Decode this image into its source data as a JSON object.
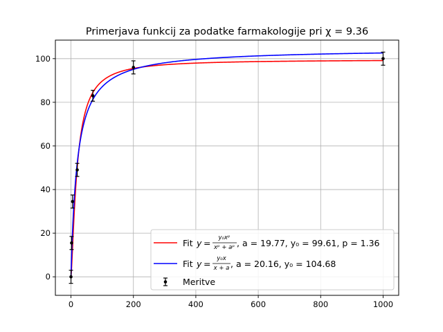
{
  "chart_data": {
    "type": "scatter",
    "title": "Primerjava funkcij za podatke farmakologije pri χ = 9.36",
    "xlabel": "",
    "ylabel": "",
    "xlim": [
      -50,
      1050
    ],
    "ylim": [
      -8.5,
      108.5
    ],
    "x_ticks": [
      0,
      200,
      400,
      600,
      800,
      1000
    ],
    "y_ticks": [
      0,
      20,
      40,
      60,
      80,
      100
    ],
    "grid": true,
    "legend_position": "lower-right",
    "series": [
      {
        "name": "Fit y=y₀xᵖ/(xᵖ+aᵖ), a=19.77, y₀=99.61, p=1.36",
        "kind": "curve",
        "model": "hill",
        "params": {
          "a": 19.77,
          "y0": 99.61,
          "p": 1.36
        },
        "x_range": [
          0,
          1000
        ],
        "color": "#ff0000"
      },
      {
        "name": "Fit y=y₀x/(x+a), a=20.16, y₀=104.68",
        "kind": "curve",
        "model": "mm",
        "params": {
          "a": 20.16,
          "y0": 104.68
        },
        "x_range": [
          0,
          1000
        ],
        "color": "#0000ff"
      },
      {
        "name": "Meritve",
        "kind": "errorbar",
        "color": "#000000",
        "points": [
          {
            "x": 0,
            "y": 0,
            "err": 3
          },
          {
            "x": 2,
            "y": 15.5,
            "err": 3
          },
          {
            "x": 5,
            "y": 34.5,
            "err": 3
          },
          {
            "x": 20,
            "y": 49,
            "err": 3
          },
          {
            "x": 70,
            "y": 83,
            "err": 2.5
          },
          {
            "x": 200,
            "y": 96,
            "err": 3
          },
          {
            "x": 1000,
            "y": 100,
            "err": 3
          }
        ]
      }
    ]
  },
  "legend": {
    "red_prefix": "Fit ",
    "red_suffix": ", a = 19.77, y₀ = 99.61, p = 1.36",
    "blue_prefix": "Fit ",
    "blue_suffix": ", a = 20.16, y₀ = 104.68",
    "meritve": "Meritve",
    "eq_y": "y",
    "eq_equals": "=",
    "hill_num": "y₀xᵖ",
    "hill_den": "xᵖ + aᵖ",
    "mm_num": "y₀x",
    "mm_den": "x + a"
  }
}
